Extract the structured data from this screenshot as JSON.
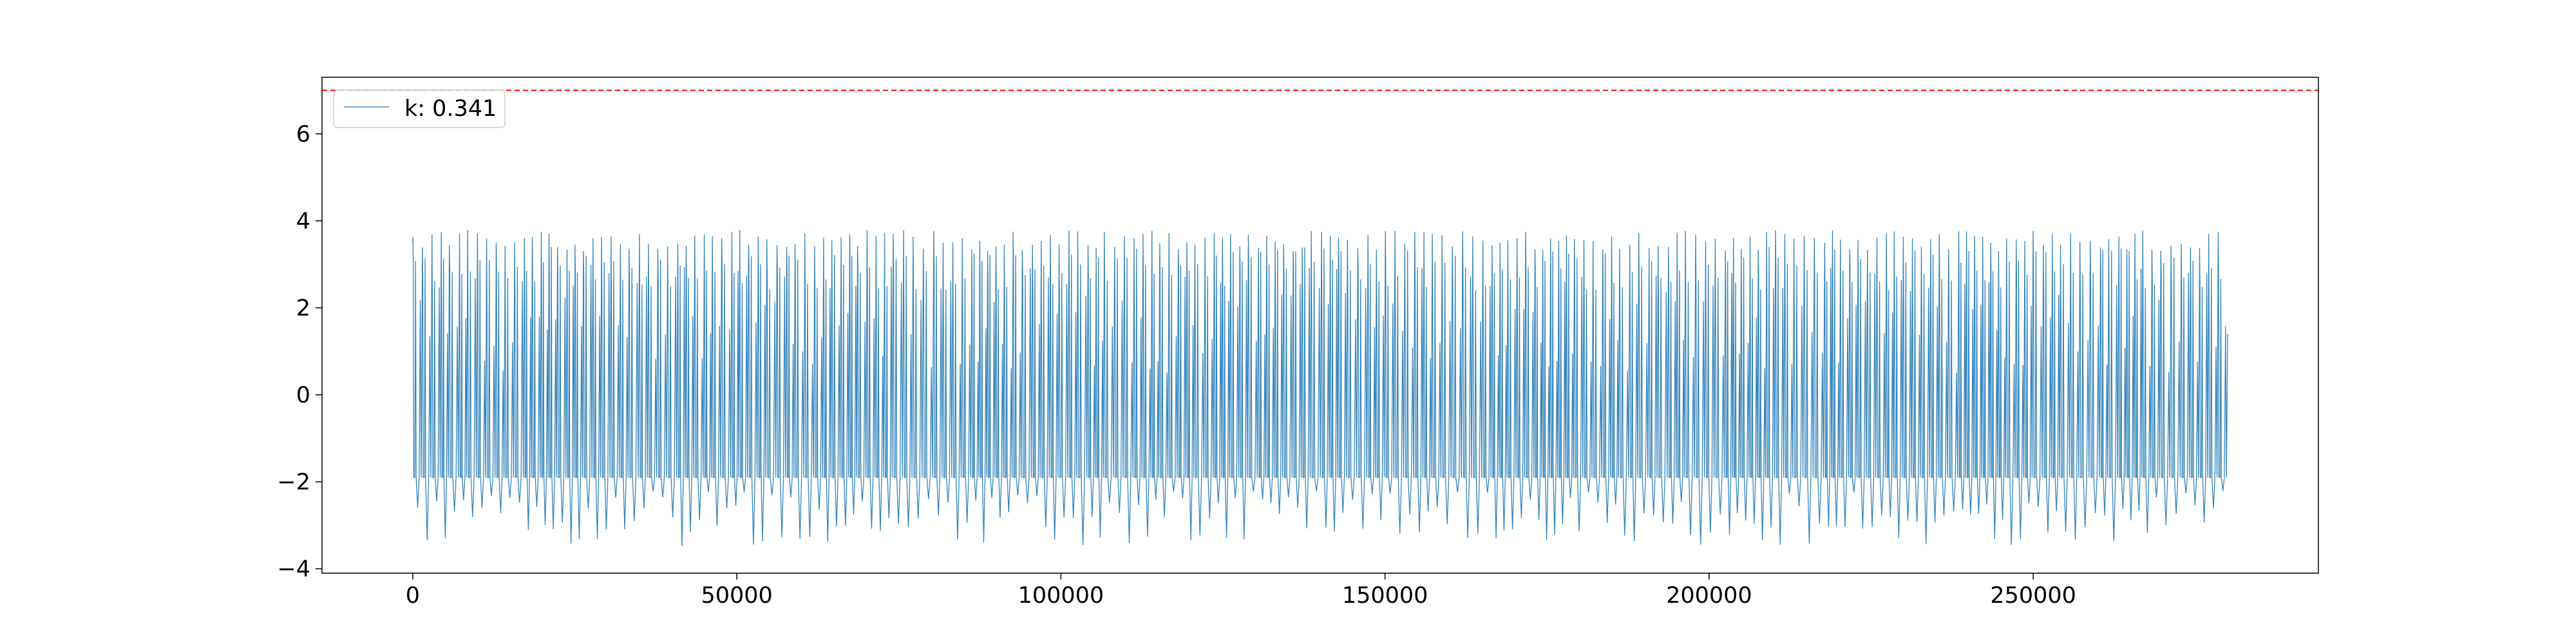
{
  "chart_data": {
    "type": "line",
    "title": "",
    "xlabel": "",
    "ylabel": "",
    "xlim": [
      -14000,
      294000
    ],
    "ylim": [
      -4.1,
      7.3
    ],
    "x_ticks": [
      0,
      50000,
      100000,
      150000,
      200000,
      250000
    ],
    "x_tick_labels": [
      "0",
      "50000",
      "100000",
      "150000",
      "200000",
      "250000"
    ],
    "y_ticks": [
      -4,
      -2,
      0,
      2,
      4,
      6
    ],
    "y_tick_labels": [
      "−4",
      "−2",
      "0",
      "2",
      "4",
      "6"
    ],
    "grid": false,
    "legend": {
      "position": "top-left",
      "entries": [
        "k: 0.341"
      ]
    },
    "series": [
      {
        "name": "k: 0.341",
        "color": "#1f77b4",
        "x_range": [
          0,
          280000
        ],
        "approx_cycles": 200,
        "peak_value_range": [
          3.3,
          3.8
        ],
        "plateau_value": -1.9,
        "trough_value_range": [
          -2.2,
          -3.5
        ],
        "x_end": 280000,
        "y_end": 1.4
      }
    ],
    "reference_lines": [
      {
        "orientation": "horizontal",
        "y": 7.0,
        "color": "#ff0000",
        "style": "dashed"
      }
    ]
  }
}
